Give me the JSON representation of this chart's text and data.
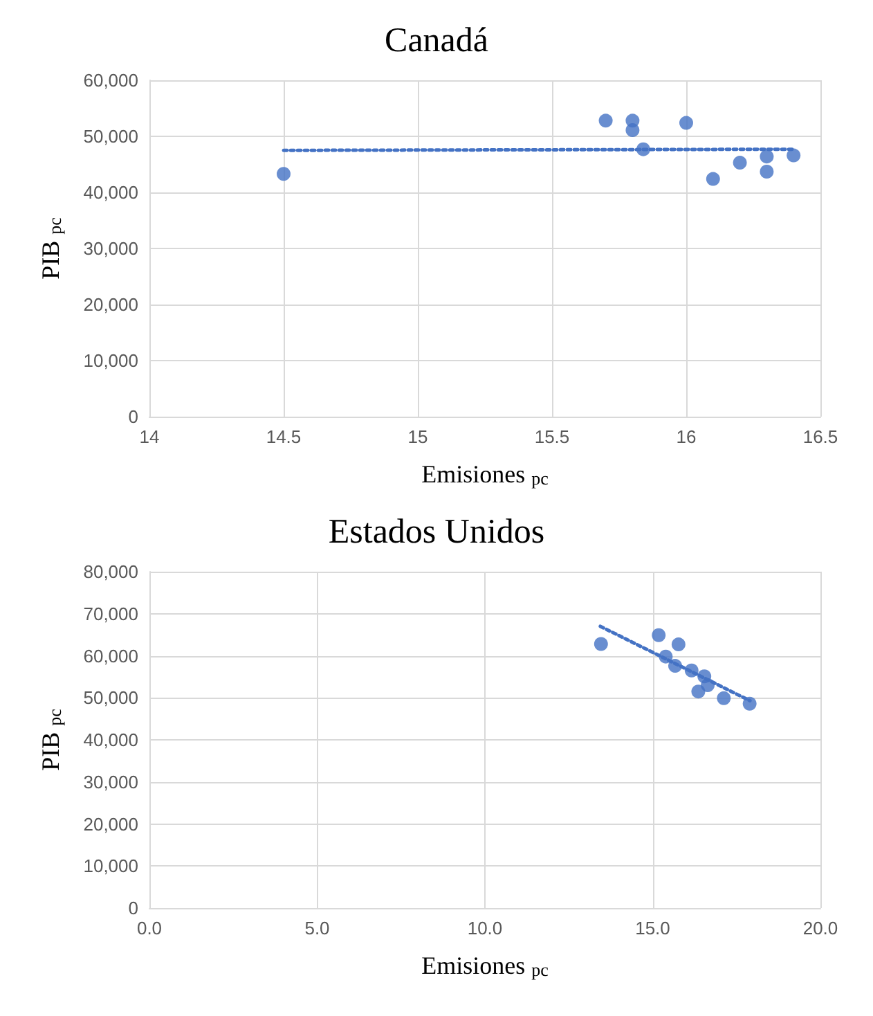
{
  "chart_data": [
    {
      "type": "scatter",
      "title": "Canadá",
      "xlabel": "Emisiones $_{pc}$",
      "ylabel": "PIB $_{pc}$",
      "grid": true,
      "xlim": [
        14,
        16.5
      ],
      "xticks": [
        14,
        14.5,
        15,
        15.5,
        16,
        16.5
      ],
      "ylim": [
        0,
        60000
      ],
      "yticks": [
        {
          "value": 0,
          "label": "0"
        },
        {
          "value": 10000,
          "label": "10,000"
        },
        {
          "value": 20000,
          "label": "20,000"
        },
        {
          "value": 30000,
          "label": "30,000"
        },
        {
          "value": 40000,
          "label": "40,000"
        },
        {
          "value": 50000,
          "label": "50,000"
        },
        {
          "value": 60000,
          "label": "60,000"
        }
      ],
      "series": [
        {
          "marker": "circle",
          "color": "#4472c4",
          "x": [
            14.5,
            15.7,
            15.8,
            15.8,
            15.84,
            16.0,
            16.1,
            16.2,
            16.3,
            16.3,
            16.4
          ],
          "values": [
            43300,
            52800,
            52800,
            51100,
            47700,
            52400,
            42400,
            45300,
            46400,
            43700,
            46600
          ]
        },
        {
          "type": "line",
          "marker": "none",
          "line_style": "dotted",
          "color": "#4472c4",
          "x": [
            14.5,
            16.4
          ],
          "values": [
            47500,
            47700
          ]
        }
      ]
    },
    {
      "type": "scatter",
      "title": "Estados Unidos",
      "xlabel": "Emisiones $_{pc}$",
      "ylabel": "PIB $_{pc}$",
      "grid": true,
      "xlim": [
        0,
        20
      ],
      "xticks": [
        {
          "value": 0,
          "label": "0.0"
        },
        {
          "value": 5,
          "label": "5.0"
        },
        {
          "value": 10,
          "label": "10.0"
        },
        {
          "value": 15,
          "label": "15.0"
        },
        {
          "value": 20,
          "label": "20.0"
        }
      ],
      "ylim": [
        0,
        80000
      ],
      "yticks": [
        {
          "value": 0,
          "label": "0"
        },
        {
          "value": 10000,
          "label": "10,000"
        },
        {
          "value": 20000,
          "label": "20,000"
        },
        {
          "value": 30000,
          "label": "30,000"
        },
        {
          "value": 40000,
          "label": "40,000"
        },
        {
          "value": 50000,
          "label": "50,000"
        },
        {
          "value": 60000,
          "label": "60,000"
        },
        {
          "value": 70000,
          "label": "70,000"
        },
        {
          "value": 80000,
          "label": "80,000"
        }
      ],
      "series": [
        {
          "marker": "circle",
          "color": "#4472c4",
          "x": [
            13.46,
            15.18,
            15.77,
            15.39,
            15.67,
            16.16,
            16.54,
            16.64,
            16.36,
            17.12,
            17.89
          ],
          "values": [
            62800,
            64900,
            62700,
            59800,
            57600,
            56500,
            55100,
            53000,
            51500,
            49900,
            48600
          ]
        },
        {
          "type": "line",
          "marker": "none",
          "line_style": "dotted",
          "color": "#4472c4",
          "x": [
            13.44,
            17.9
          ],
          "values": [
            67000,
            49300
          ]
        }
      ]
    }
  ]
}
